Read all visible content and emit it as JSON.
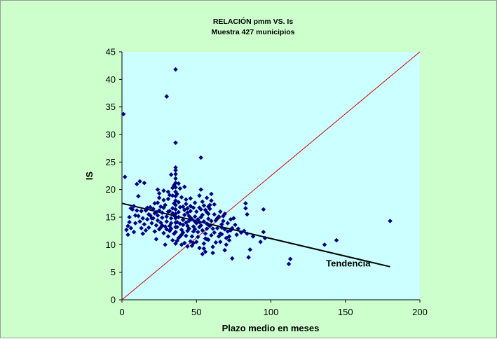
{
  "chart_data": {
    "type": "scatter",
    "title": "RELACIÓN pmm VS. Is",
    "subtitle": "Muestra 427 municipios",
    "xlabel": "Plazo medio en meses",
    "ylabel": "IS",
    "xlim": [
      0,
      200
    ],
    "ylim": [
      0,
      45
    ],
    "xticks": [
      "0",
      "50",
      "100",
      "150",
      "200"
    ],
    "yticks": [
      "0",
      "5",
      "10",
      "15",
      "20",
      "25",
      "30",
      "35",
      "40",
      "45"
    ],
    "grid": false,
    "legend": "none",
    "plot_background": "#ccffff",
    "frame_background": "#ccffcc",
    "marker_color": "#000080",
    "series": [
      {
        "points": [
          [
            1,
            33.7
          ],
          [
            36,
            41.8
          ],
          [
            30,
            36.9
          ],
          [
            36,
            28.5
          ],
          [
            53,
            25.8
          ],
          [
            2,
            22.3
          ],
          [
            180,
            14.3
          ],
          [
            144,
            10.8
          ],
          [
            136,
            10.0
          ],
          [
            113,
            7.4
          ],
          [
            112,
            6.5
          ],
          [
            93,
            10.5
          ],
          [
            96,
            11.2
          ],
          [
            95,
            12.3
          ],
          [
            95,
            16.4
          ],
          [
            88,
            11.5
          ],
          [
            86,
            9.1
          ],
          [
            85,
            7.7
          ],
          [
            84,
            12.0
          ],
          [
            83,
            17.5
          ],
          [
            83,
            16.6
          ],
          [
            84,
            15.5
          ],
          [
            82,
            12.5
          ],
          [
            77,
            11.8
          ],
          [
            74,
            7.5
          ],
          [
            75,
            14.8
          ],
          [
            74,
            13.0
          ],
          [
            73,
            12.6
          ],
          [
            72,
            11.5
          ],
          [
            72,
            10.8
          ],
          [
            70,
            10.0
          ],
          [
            69,
            9.0
          ],
          [
            68,
            15.2
          ],
          [
            68,
            14.3
          ],
          [
            67,
            13.1
          ],
          [
            66,
            12.0
          ],
          [
            65,
            11.5
          ],
          [
            64,
            14.8
          ],
          [
            62,
            15.5
          ],
          [
            61,
            8.5
          ],
          [
            60,
            19.2
          ],
          [
            60,
            18.0
          ],
          [
            59,
            17.2
          ],
          [
            59,
            16.5
          ],
          [
            58,
            15.6
          ],
          [
            58,
            14.7
          ],
          [
            57,
            13.8
          ],
          [
            57,
            12.9
          ],
          [
            56,
            12.0
          ],
          [
            56,
            11.1
          ],
          [
            55,
            10.2
          ],
          [
            55,
            9.3
          ],
          [
            54,
            8.3
          ],
          [
            54,
            17.8
          ],
          [
            53,
            16.4
          ],
          [
            53,
            15.0
          ],
          [
            52,
            14.1
          ],
          [
            52,
            13.2
          ],
          [
            51,
            12.3
          ],
          [
            51,
            11.4
          ],
          [
            50,
            10.5
          ],
          [
            50,
            16.0
          ],
          [
            49,
            15.1
          ],
          [
            49,
            14.2
          ],
          [
            48,
            13.3
          ],
          [
            48,
            12.4
          ],
          [
            47,
            11.5
          ],
          [
            47,
            9.8
          ],
          [
            46,
            17.0
          ],
          [
            46,
            16.1
          ],
          [
            45,
            15.2
          ],
          [
            45,
            14.3
          ],
          [
            44,
            13.4
          ],
          [
            44,
            12.5
          ],
          [
            43,
            11.6
          ],
          [
            43,
            18.2
          ],
          [
            42,
            16.3
          ],
          [
            42,
            15.4
          ],
          [
            41,
            14.5
          ],
          [
            41,
            13.6
          ],
          [
            40,
            12.7
          ],
          [
            40,
            11.8
          ],
          [
            39,
            20.2
          ],
          [
            39,
            16.8
          ],
          [
            38,
            15.9
          ],
          [
            38,
            15.0
          ],
          [
            37,
            14.1
          ],
          [
            37,
            13.2
          ],
          [
            36,
            12.3
          ],
          [
            36,
            10.2
          ],
          [
            36,
            23.5
          ],
          [
            36,
            22.8
          ],
          [
            36,
            22.0
          ],
          [
            36,
            21.2
          ],
          [
            36,
            20.4
          ],
          [
            36,
            19.6
          ],
          [
            36,
            18.8
          ],
          [
            36,
            18.0
          ],
          [
            36,
            17.2
          ],
          [
            36,
            16.4
          ],
          [
            36,
            15.6
          ],
          [
            36,
            14.8
          ],
          [
            36,
            14.0
          ],
          [
            36,
            13.2
          ],
          [
            35,
            20.8
          ],
          [
            35,
            17.5
          ],
          [
            34,
            16.6
          ],
          [
            34,
            15.7
          ],
          [
            33,
            14.8
          ],
          [
            33,
            13.9
          ],
          [
            32,
            19.0
          ],
          [
            32,
            12.5
          ],
          [
            31,
            18.3
          ],
          [
            31,
            16.0
          ],
          [
            30,
            15.1
          ],
          [
            30,
            14.2
          ],
          [
            29,
            13.3
          ],
          [
            29,
            10.0
          ],
          [
            28,
            19.8
          ],
          [
            28,
            16.7
          ],
          [
            27,
            15.8
          ],
          [
            27,
            14.9
          ],
          [
            26,
            14.0
          ],
          [
            26,
            13.1
          ],
          [
            25,
            19.3
          ],
          [
            25,
            16.2
          ],
          [
            24,
            15.3
          ],
          [
            24,
            14.4
          ],
          [
            23,
            13.5
          ],
          [
            23,
            11.0
          ],
          [
            22,
            17.5
          ],
          [
            22,
            15.7
          ],
          [
            21,
            14.8
          ],
          [
            20,
            13.9
          ],
          [
            19,
            16.8
          ],
          [
            18,
            15.5
          ],
          [
            17,
            14.6
          ],
          [
            16,
            16.2
          ],
          [
            15,
            21.2
          ],
          [
            15,
            13.7
          ],
          [
            14,
            12.0
          ],
          [
            13,
            13.0
          ],
          [
            12,
            21.5
          ],
          [
            12,
            14.2
          ],
          [
            11,
            18.8
          ],
          [
            10,
            21.0
          ],
          [
            10,
            16.2
          ],
          [
            9,
            15.3
          ],
          [
            8,
            17.0
          ],
          [
            7,
            16.4
          ],
          [
            6,
            13.0
          ],
          [
            5,
            14.1
          ],
          [
            5,
            15.0
          ],
          [
            4,
            11.8
          ],
          [
            44,
            9.7
          ],
          [
            48,
            10.3
          ],
          [
            56,
            8.7
          ],
          [
            52,
            9.4
          ],
          [
            61,
            9.6
          ],
          [
            63,
            10.4
          ],
          [
            58,
            10.9
          ],
          [
            46,
            10.6
          ],
          [
            40,
            10.0
          ],
          [
            34,
            10.8
          ],
          [
            38,
            11.2
          ],
          [
            42,
            10.3
          ],
          [
            60,
            11.7
          ],
          [
            66,
            10.5
          ],
          [
            70,
            11.2
          ],
          [
            71,
            12.4
          ],
          [
            67,
            13.7
          ],
          [
            64,
            13.0
          ],
          [
            62,
            12.2
          ],
          [
            57,
            11.0
          ],
          [
            54,
            12.6
          ],
          [
            50,
            13.9
          ],
          [
            47,
            14.6
          ],
          [
            44,
            15.8
          ],
          [
            41,
            16.9
          ],
          [
            38,
            17.7
          ],
          [
            35,
            15.3
          ],
          [
            32,
            16.1
          ],
          [
            29,
            17.2
          ],
          [
            26,
            16.9
          ],
          [
            24,
            17.6
          ],
          [
            22,
            12.4
          ],
          [
            20,
            14.8
          ],
          [
            18,
            13.1
          ],
          [
            28,
            12.1
          ],
          [
            31,
            11.5
          ],
          [
            33,
            12.9
          ],
          [
            37,
            10.7
          ],
          [
            39,
            13.8
          ],
          [
            43,
            14.0
          ],
          [
            45,
            12.9
          ],
          [
            49,
            12.8
          ],
          [
            51,
            14.6
          ],
          [
            53,
            13.5
          ],
          [
            55,
            14.2
          ],
          [
            57,
            15.9
          ],
          [
            59,
            13.4
          ],
          [
            61,
            12.9
          ],
          [
            63,
            14.4
          ],
          [
            65,
            15.1
          ],
          [
            67,
            11.9
          ],
          [
            69,
            12.8
          ],
          [
            71,
            13.9
          ],
          [
            73,
            14.6
          ],
          [
            76,
            13.6
          ],
          [
            78,
            12.9
          ],
          [
            80,
            12.2
          ],
          [
            57,
            18.5
          ],
          [
            55,
            17.1
          ],
          [
            52,
            18.9
          ],
          [
            49,
            17.6
          ],
          [
            46,
            18.4
          ],
          [
            43,
            17.4
          ],
          [
            40,
            18.6
          ],
          [
            37,
            19.2
          ],
          [
            34,
            18.9
          ],
          [
            31,
            19.6
          ],
          [
            28,
            18.1
          ],
          [
            25,
            18.5
          ],
          [
            24,
            20.0
          ],
          [
            33,
            22.7
          ],
          [
            36,
            24.0
          ],
          [
            42,
            20.5
          ],
          [
            38,
            21.1
          ],
          [
            34,
            20.3
          ],
          [
            53,
            20.0
          ],
          [
            58,
            16.9
          ],
          [
            62,
            17.3
          ],
          [
            66,
            16.0
          ],
          [
            69,
            15.6
          ],
          [
            58,
            13.6
          ],
          [
            60,
            14.3
          ],
          [
            56,
            16.3
          ],
          [
            54,
            15.4
          ],
          [
            52,
            16.7
          ],
          [
            48,
            16.7
          ],
          [
            46,
            14.9
          ],
          [
            44,
            16.6
          ],
          [
            41,
            12.2
          ],
          [
            39,
            11.5
          ],
          [
            35,
            12.0
          ],
          [
            32,
            13.4
          ],
          [
            30,
            12.8
          ],
          [
            27,
            13.5
          ],
          [
            25,
            12.8
          ],
          [
            23,
            15.9
          ],
          [
            21,
            16.5
          ],
          [
            19,
            15.3
          ],
          [
            17,
            16.7
          ],
          [
            16,
            12.6
          ],
          [
            14,
            14.8
          ],
          [
            13,
            16.1
          ],
          [
            11,
            15.2
          ],
          [
            9,
            13.9
          ],
          [
            8,
            12.3
          ],
          [
            6,
            16.6
          ],
          [
            4,
            13.4
          ],
          [
            3,
            12.7
          ]
        ]
      }
    ],
    "lines": [
      {
        "name": "identity",
        "x": [
          0,
          200
        ],
        "y": [
          0,
          45
        ],
        "color": "#cc0000"
      },
      {
        "name": "Tendencia",
        "x": [
          0,
          180
        ],
        "y": [
          17.5,
          6.0
        ],
        "color": "#000000"
      }
    ],
    "annotations": [
      {
        "text": "Tendencia",
        "x": 137,
        "y": 5.3
      }
    ]
  }
}
